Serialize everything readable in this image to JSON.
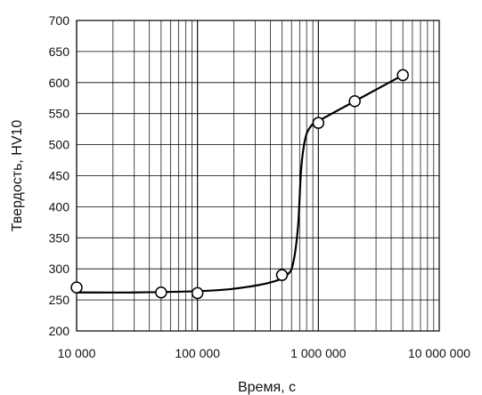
{
  "chart_data": {
    "type": "line",
    "title": "",
    "xlabel": "Время, с",
    "ylabel": "Твердость, HV10",
    "x_scale": "log",
    "xlim": [
      10000,
      10000000
    ],
    "ylim": [
      200,
      700
    ],
    "grid": true,
    "x_tick_values": [
      10000,
      100000,
      1000000,
      10000000
    ],
    "x_tick_labels": [
      "10 000",
      "100 000",
      "1 000 000",
      "10 000 000"
    ],
    "y_ticks": [
      200,
      250,
      300,
      350,
      400,
      450,
      500,
      550,
      600,
      650,
      700
    ],
    "points": [
      {
        "x": 10000,
        "y": 270
      },
      {
        "x": 50000,
        "y": 262
      },
      {
        "x": 100000,
        "y": 261
      },
      {
        "x": 500000,
        "y": 290
      },
      {
        "x": 1000000,
        "y": 535
      },
      {
        "x": 2000000,
        "y": 570
      },
      {
        "x": 5000000,
        "y": 612
      }
    ],
    "curve": [
      [
        10000,
        262
      ],
      [
        30000,
        262
      ],
      [
        100000,
        264
      ],
      [
        200000,
        268
      ],
      [
        400000,
        278
      ],
      [
        550000,
        290
      ],
      [
        620000,
        310
      ],
      [
        680000,
        370
      ],
      [
        720000,
        460
      ],
      [
        780000,
        510
      ],
      [
        870000,
        530
      ],
      [
        1000000,
        538
      ],
      [
        2000000,
        570
      ],
      [
        5000000,
        612
      ]
    ]
  }
}
